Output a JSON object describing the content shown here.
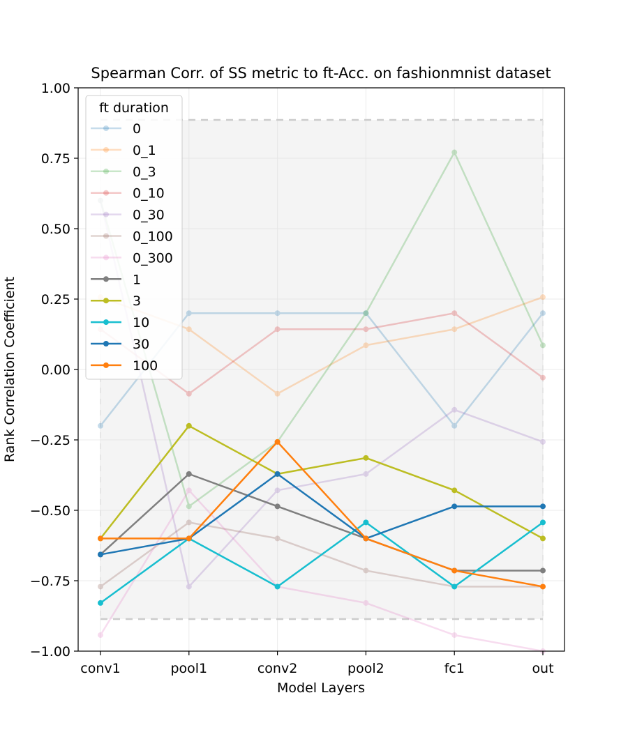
{
  "chart_data": {
    "type": "line",
    "title": "Spearman Corr. of SS metric to ft-Acc. on fashionmnist dataset",
    "xlabel": "Model Layers",
    "ylabel": "Rank Correlation Coefficient",
    "categories": [
      "conv1",
      "pool1",
      "conv2",
      "pool2",
      "fc1",
      "out"
    ],
    "ylim": [
      -1.0,
      1.0
    ],
    "yticks": [
      -1.0,
      -0.75,
      -0.5,
      -0.25,
      0.0,
      0.25,
      0.5,
      0.75,
      1.0
    ],
    "ytick_labels": [
      "−1.00",
      "−0.75",
      "−0.50",
      "−0.25",
      "0.00",
      "0.25",
      "0.50",
      "0.75",
      "1.00"
    ],
    "grid": true,
    "legend_title": "ft duration",
    "legend_position": "upper-left",
    "band": {
      "y_low": -0.886,
      "y_high": 0.886,
      "x_from": "conv1",
      "x_to": "out",
      "color": "#d9d9d9"
    },
    "series": [
      {
        "name": "0",
        "color": "#1f77b4",
        "faded": true,
        "values": [
          -0.2,
          0.2,
          0.2,
          0.2,
          -0.2,
          0.2
        ]
      },
      {
        "name": "0_1",
        "color": "#ff7f0e",
        "faded": true,
        "values": [
          0.257,
          0.143,
          -0.086,
          0.086,
          0.143,
          0.257
        ]
      },
      {
        "name": "0_3",
        "color": "#2ca02c",
        "faded": true,
        "values": [
          0.6,
          -0.486,
          -0.257,
          0.2,
          0.771,
          0.086
        ]
      },
      {
        "name": "0_10",
        "color": "#d62728",
        "faded": true,
        "values": [
          0.143,
          -0.086,
          0.143,
          0.143,
          0.2,
          -0.029
        ]
      },
      {
        "name": "0_30",
        "color": "#9467bd",
        "faded": true,
        "values": [
          0.6,
          -0.771,
          -0.429,
          -0.371,
          -0.143,
          -0.257
        ]
      },
      {
        "name": "0_100",
        "color": "#8c564b",
        "faded": true,
        "values": [
          -0.771,
          -0.543,
          -0.6,
          -0.714,
          -0.771,
          -0.771
        ]
      },
      {
        "name": "0_300",
        "color": "#e377c2",
        "faded": true,
        "values": [
          -0.943,
          -0.429,
          -0.771,
          -0.829,
          -0.943,
          -1.0
        ]
      },
      {
        "name": "1",
        "color": "#7f7f7f",
        "faded": false,
        "values": [
          -0.657,
          -0.371,
          -0.486,
          -0.6,
          -0.714,
          -0.714
        ]
      },
      {
        "name": "3",
        "color": "#bcbd22",
        "faded": false,
        "values": [
          -0.6,
          -0.2,
          -0.371,
          -0.314,
          -0.429,
          -0.6
        ]
      },
      {
        "name": "10",
        "color": "#17becf",
        "faded": false,
        "values": [
          -0.829,
          -0.6,
          -0.771,
          -0.543,
          -0.771,
          -0.543
        ]
      },
      {
        "name": "30",
        "color": "#1f77b4",
        "faded": false,
        "values": [
          -0.657,
          -0.6,
          -0.371,
          -0.6,
          -0.486,
          -0.486
        ]
      },
      {
        "name": "100",
        "color": "#ff7f0e",
        "faded": false,
        "values": [
          -0.6,
          -0.6,
          -0.257,
          -0.6,
          -0.714,
          -0.771
        ]
      }
    ]
  }
}
